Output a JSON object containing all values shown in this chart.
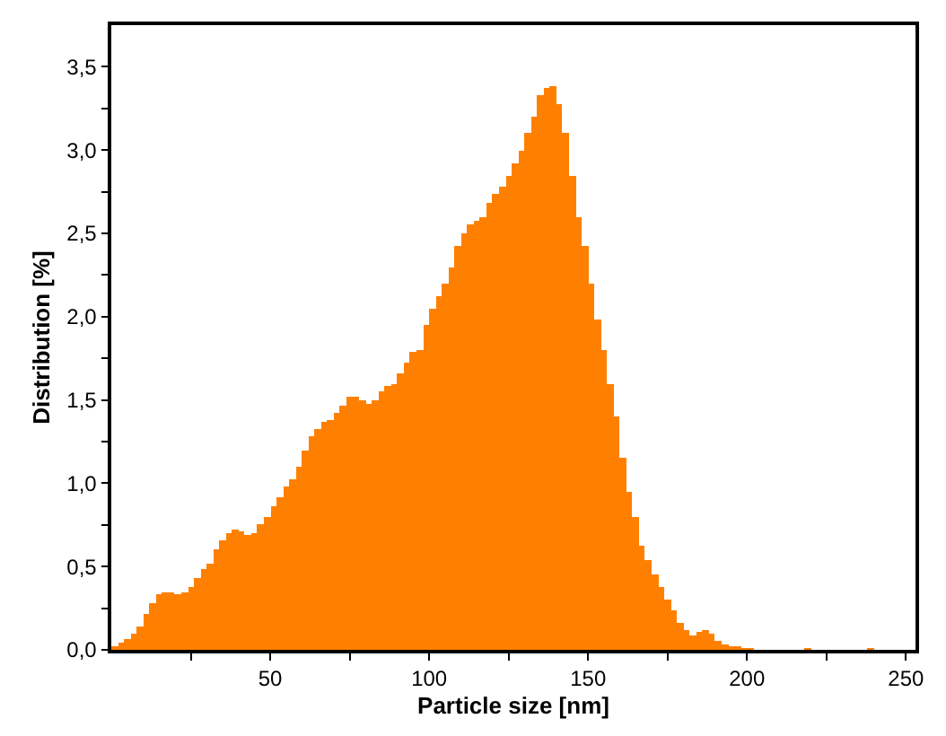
{
  "chart_data": {
    "type": "histogram",
    "xlabel": "Particle size [nm]",
    "ylabel": "Distribution [%]",
    "color": "#ff8000",
    "bins": [
      0,
      2,
      4,
      6,
      8,
      10,
      12,
      14,
      16,
      18,
      20,
      22,
      24,
      26,
      28,
      30,
      32,
      34,
      36,
      38,
      40,
      42,
      44,
      46,
      48,
      50,
      52,
      54,
      56,
      58,
      60,
      62,
      64,
      66,
      68,
      70,
      72,
      74,
      76,
      78,
      80,
      82,
      84,
      86,
      88,
      90,
      92,
      94,
      96,
      98,
      100,
      102,
      104,
      106,
      108,
      110,
      112,
      114,
      116,
      118,
      120,
      122,
      124,
      126,
      128,
      130,
      132,
      134,
      136,
      138,
      140,
      142,
      144,
      146,
      148,
      150,
      152,
      154,
      156,
      158,
      160,
      162,
      164,
      166,
      168,
      170,
      172,
      174,
      176,
      178,
      180,
      182,
      184,
      186,
      188,
      190,
      192,
      194,
      196,
      198,
      200,
      202,
      204,
      206,
      208,
      210,
      212,
      214,
      216,
      218,
      220,
      222,
      224,
      226,
      228,
      230,
      232,
      234,
      236,
      238,
      240
    ],
    "values": [
      0.02,
      0.04,
      0.07,
      0.1,
      0.14,
      0.22,
      0.28,
      0.33,
      0.35,
      0.35,
      0.33,
      0.34,
      0.38,
      0.43,
      0.48,
      0.52,
      0.6,
      0.66,
      0.7,
      0.72,
      0.71,
      0.69,
      0.7,
      0.75,
      0.8,
      0.86,
      0.92,
      0.98,
      1.02,
      1.1,
      1.2,
      1.28,
      1.33,
      1.37,
      1.38,
      1.42,
      1.47,
      1.52,
      1.52,
      1.5,
      1.48,
      1.5,
      1.55,
      1.58,
      1.6,
      1.66,
      1.72,
      1.79,
      1.8,
      1.95,
      2.05,
      2.12,
      2.2,
      2.3,
      2.43,
      2.5,
      2.55,
      2.58,
      2.6,
      2.68,
      2.74,
      2.78,
      2.85,
      2.92,
      3.0,
      3.1,
      3.2,
      3.33,
      3.37,
      3.38,
      3.28,
      3.1,
      2.85,
      2.6,
      2.42,
      2.2,
      1.98,
      1.8,
      1.6,
      1.4,
      1.15,
      0.95,
      0.8,
      0.63,
      0.54,
      0.45,
      0.38,
      0.3,
      0.24,
      0.16,
      0.12,
      0.09,
      0.11,
      0.12,
      0.1,
      0.05,
      0.03,
      0.02,
      0.02,
      0.01,
      0.01,
      0,
      0,
      0,
      0,
      0,
      0,
      0,
      0,
      0.01,
      0,
      0,
      0,
      0,
      0,
      0,
      0,
      0,
      0,
      0.01
    ],
    "xlim": [
      0,
      253
    ],
    "ylim": [
      0,
      3.75
    ],
    "xticks": [
      {
        "value": 25,
        "label": null
      },
      50,
      {
        "value": 75,
        "label": null
      },
      100,
      {
        "value": 125,
        "label": null
      },
      150,
      {
        "value": 175,
        "label": null
      },
      200,
      {
        "value": 225,
        "label": null
      },
      250
    ],
    "yticks": [
      {
        "value": 0,
        "label": "0,0"
      },
      {
        "value": 0.25,
        "label": null
      },
      {
        "value": 0.5,
        "label": "0,5"
      },
      {
        "value": 0.75,
        "label": null
      },
      {
        "value": 1.0,
        "label": "1,0"
      },
      {
        "value": 1.25,
        "label": null
      },
      {
        "value": 1.5,
        "label": "1,5"
      },
      {
        "value": 1.75,
        "label": null
      },
      {
        "value": 2.0,
        "label": "2,0"
      },
      {
        "value": 2.25,
        "label": null
      },
      {
        "value": 2.5,
        "label": "2,5"
      },
      {
        "value": 2.75,
        "label": null
      },
      {
        "value": 3.0,
        "label": "3,0"
      },
      {
        "value": 3.25,
        "label": null
      },
      {
        "value": 3.5,
        "label": "3,5"
      }
    ]
  }
}
